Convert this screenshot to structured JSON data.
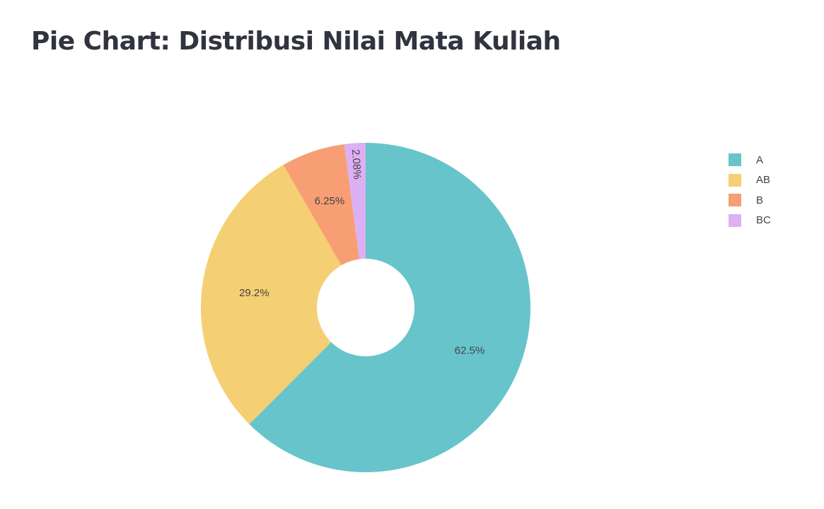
{
  "chart_data": {
    "type": "pie",
    "title": "Pie Chart: Distribusi Nilai Mata Kuliah",
    "hole": true,
    "legend_position": "right",
    "slices": [
      {
        "label": "A",
        "value": 62.5,
        "text": "62.5%",
        "color": "#67c4cb"
      },
      {
        "label": "AB",
        "value": 29.2,
        "text": "29.2%",
        "color": "#f5cf73"
      },
      {
        "label": "B",
        "value": 6.25,
        "text": "6.25%",
        "color": "#f89e74"
      },
      {
        "label": "BC",
        "value": 2.08,
        "text": "2.08%",
        "color": "#dcb0f2"
      }
    ]
  }
}
